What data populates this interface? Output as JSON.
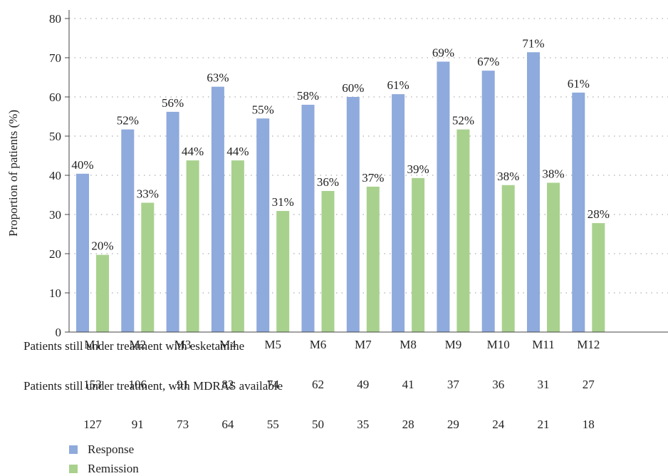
{
  "chart_data": {
    "type": "bar",
    "ylabel": "Proportion of patients (%)",
    "ylim": [
      0,
      80
    ],
    "yticks": [
      0,
      10,
      20,
      30,
      40,
      50,
      60,
      70,
      80
    ],
    "grid": "dotted-horizontal",
    "categories": [
      "M1",
      "M2",
      "M3",
      "M4",
      "M5",
      "M6",
      "M7",
      "M8",
      "M9",
      "M10",
      "M11",
      "M12"
    ],
    "series": [
      {
        "name": "Response",
        "color": "#8faadc",
        "values": [
          40.4,
          51.7,
          56.2,
          62.6,
          54.5,
          58.0,
          60.0,
          60.7,
          69.0,
          66.7,
          71.4,
          61.1
        ],
        "labels": [
          "40%",
          "52%",
          "56%",
          "63%",
          "55%",
          "58%",
          "60%",
          "61%",
          "69%",
          "67%",
          "71%",
          "61%"
        ]
      },
      {
        "name": "Remission",
        "color": "#a9d18e",
        "values": [
          19.7,
          33.0,
          43.8,
          43.8,
          30.9,
          36.0,
          37.1,
          39.3,
          51.7,
          37.5,
          38.1,
          27.8
        ],
        "labels": [
          "20%",
          "33%",
          "44%",
          "44%",
          "31%",
          "36%",
          "37%",
          "39%",
          "52%",
          "38%",
          "38%",
          "28%"
        ]
      }
    ],
    "legend_position": "bottom-left"
  },
  "table": {
    "rows": [
      {
        "label": "Patients still under treatment with esketamine",
        "values": [
          "153",
          "106",
          "91",
          "82",
          "74",
          "62",
          "49",
          "41",
          "37",
          "36",
          "31",
          "27"
        ]
      },
      {
        "label": "Patients still under treatment, with MDRAS available",
        "values": [
          "127",
          "91",
          "73",
          "64",
          "55",
          "50",
          "35",
          "28",
          "29",
          "24",
          "21",
          "18"
        ]
      }
    ]
  }
}
